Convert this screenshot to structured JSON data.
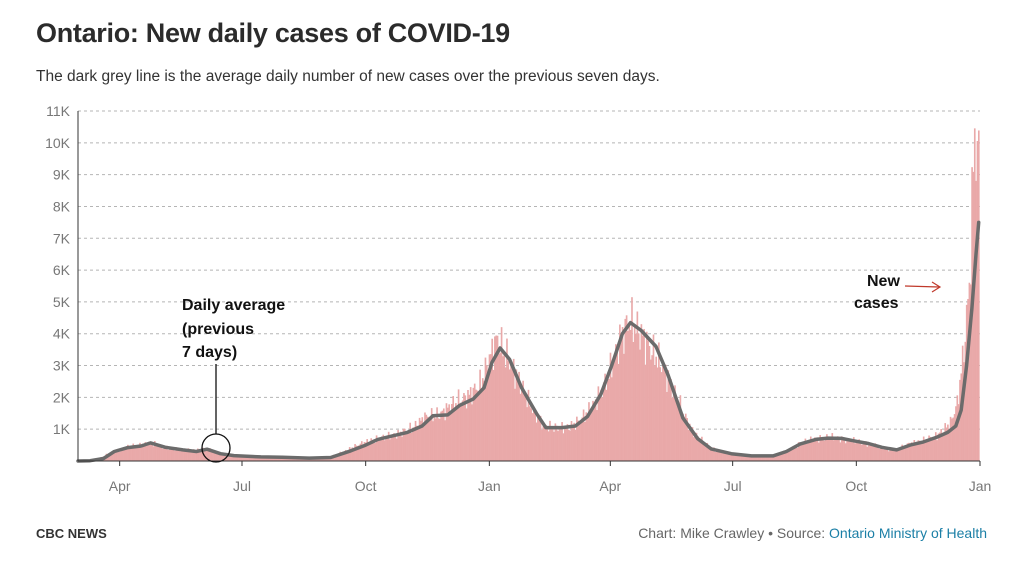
{
  "header": {
    "title": "Ontario: New daily cases of COVID-19",
    "subtitle": "The dark grey line is the average daily number of new cases over the previous seven days."
  },
  "footer": {
    "brand": "CBC NEWS",
    "credit_prefix": "Chart: Mike Crawley • Source: ",
    "source_link": "Ontario Ministry of Health"
  },
  "colors": {
    "bars": "#e9a9a9",
    "average_line": "#6b6b6b",
    "arrow": "#c0392b",
    "grid": "#b5b5b5",
    "link": "#1b7fa6"
  },
  "annotations": {
    "average": [
      "Daily average",
      "(previous",
      "7 days)"
    ],
    "new_cases": [
      "New",
      "cases"
    ]
  },
  "chart_data": {
    "type": "bar",
    "title": "Ontario: New daily cases of COVID-19",
    "subtitle": "The dark grey line is the average daily number of new cases over the previous seven days.",
    "xlabel": "",
    "ylabel": "",
    "x_start": "2020-03-01",
    "x_end": "2022-01-01",
    "ylim": [
      0,
      11000
    ],
    "y_ticks": [
      {
        "value": 1000,
        "label": "1K"
      },
      {
        "value": 2000,
        "label": "2K"
      },
      {
        "value": 3000,
        "label": "3K"
      },
      {
        "value": 4000,
        "label": "4K"
      },
      {
        "value": 5000,
        "label": "5K"
      },
      {
        "value": 6000,
        "label": "6K"
      },
      {
        "value": 7000,
        "label": "7K"
      },
      {
        "value": 8000,
        "label": "8K"
      },
      {
        "value": 9000,
        "label": "9K"
      },
      {
        "value": 10000,
        "label": "10K"
      },
      {
        "value": 11000,
        "label": "11K"
      }
    ],
    "x_ticks": [
      {
        "date": "2020-04-01",
        "label": "Apr"
      },
      {
        "date": "2020-07-01",
        "label": "Jul"
      },
      {
        "date": "2020-10-01",
        "label": "Oct"
      },
      {
        "date": "2021-01-01",
        "label": "Jan"
      },
      {
        "date": "2021-04-01",
        "label": "Apr"
      },
      {
        "date": "2021-07-01",
        "label": "Jul"
      },
      {
        "date": "2021-10-01",
        "label": "Oct"
      },
      {
        "date": "2022-01-01",
        "label": "Jan"
      }
    ],
    "grid": true,
    "legend": "none",
    "series": [
      {
        "name": "New cases",
        "kind": "bars",
        "interpolated_daily": true,
        "points": [
          [
            "2020-03-01",
            0
          ],
          [
            "2020-03-15",
            50
          ],
          [
            "2020-03-25",
            250
          ],
          [
            "2020-04-05",
            420
          ],
          [
            "2020-04-15",
            500
          ],
          [
            "2020-04-25",
            560
          ],
          [
            "2020-05-05",
            420
          ],
          [
            "2020-05-15",
            360
          ],
          [
            "2020-05-25",
            330
          ],
          [
            "2020-06-05",
            380
          ],
          [
            "2020-06-15",
            220
          ],
          [
            "2020-06-25",
            160
          ],
          [
            "2020-07-10",
            130
          ],
          [
            "2020-07-25",
            140
          ],
          [
            "2020-08-10",
            90
          ],
          [
            "2020-08-25",
            100
          ],
          [
            "2020-09-05",
            140
          ],
          [
            "2020-09-15",
            300
          ],
          [
            "2020-09-25",
            500
          ],
          [
            "2020-10-05",
            650
          ],
          [
            "2020-10-15",
            750
          ],
          [
            "2020-10-25",
            850
          ],
          [
            "2020-11-05",
            1050
          ],
          [
            "2020-11-15",
            1400
          ],
          [
            "2020-11-25",
            1450
          ],
          [
            "2020-12-05",
            1800
          ],
          [
            "2020-12-15",
            2000
          ],
          [
            "2020-12-25",
            2400
          ],
          [
            "2021-01-01",
            3200
          ],
          [
            "2021-01-06",
            3800
          ],
          [
            "2021-01-10",
            3600
          ],
          [
            "2021-01-20",
            2800
          ],
          [
            "2021-02-01",
            1700
          ],
          [
            "2021-02-10",
            1100
          ],
          [
            "2021-02-20",
            1050
          ],
          [
            "2021-03-01",
            1050
          ],
          [
            "2021-03-10",
            1300
          ],
          [
            "2021-03-20",
            1800
          ],
          [
            "2021-03-30",
            2600
          ],
          [
            "2021-04-08",
            3800
          ],
          [
            "2021-04-15",
            4400
          ],
          [
            "2021-04-22",
            4100
          ],
          [
            "2021-05-01",
            3500
          ],
          [
            "2021-05-10",
            3000
          ],
          [
            "2021-05-20",
            2000
          ],
          [
            "2021-05-31",
            1000
          ],
          [
            "2021-06-10",
            550
          ],
          [
            "2021-06-20",
            300
          ],
          [
            "2021-07-01",
            200
          ],
          [
            "2021-07-15",
            160
          ],
          [
            "2021-07-31",
            170
          ],
          [
            "2021-08-10",
            300
          ],
          [
            "2021-08-20",
            550
          ],
          [
            "2021-08-31",
            700
          ],
          [
            "2021-09-10",
            750
          ],
          [
            "2021-09-20",
            700
          ],
          [
            "2021-09-30",
            620
          ],
          [
            "2021-10-10",
            550
          ],
          [
            "2021-10-20",
            400
          ],
          [
            "2021-10-31",
            350
          ],
          [
            "2021-11-10",
            550
          ],
          [
            "2021-11-20",
            650
          ],
          [
            "2021-11-30",
            800
          ],
          [
            "2021-12-10",
            1200
          ],
          [
            "2021-12-15",
            1800
          ],
          [
            "2021-12-20",
            3500
          ],
          [
            "2021-12-24",
            5500
          ],
          [
            "2021-12-28",
            10400
          ],
          [
            "2021-12-30",
            9500
          ],
          [
            "2021-12-31",
            9300
          ]
        ]
      },
      {
        "name": "Daily average (previous 7 days)",
        "kind": "line",
        "points": [
          [
            "2020-03-01",
            0
          ],
          [
            "2020-03-10",
            10
          ],
          [
            "2020-03-20",
            80
          ],
          [
            "2020-03-28",
            300
          ],
          [
            "2020-04-07",
            420
          ],
          [
            "2020-04-17",
            470
          ],
          [
            "2020-04-24",
            570
          ],
          [
            "2020-05-05",
            430
          ],
          [
            "2020-05-18",
            350
          ],
          [
            "2020-05-28",
            300
          ],
          [
            "2020-06-05",
            370
          ],
          [
            "2020-06-15",
            230
          ],
          [
            "2020-06-25",
            170
          ],
          [
            "2020-07-15",
            130
          ],
          [
            "2020-07-31",
            120
          ],
          [
            "2020-08-20",
            90
          ],
          [
            "2020-09-05",
            110
          ],
          [
            "2020-09-20",
            320
          ],
          [
            "2020-10-01",
            500
          ],
          [
            "2020-10-10",
            680
          ],
          [
            "2020-10-20",
            780
          ],
          [
            "2020-11-01",
            900
          ],
          [
            "2020-11-12",
            1100
          ],
          [
            "2020-11-20",
            1420
          ],
          [
            "2020-12-01",
            1450
          ],
          [
            "2020-12-10",
            1750
          ],
          [
            "2020-12-20",
            1950
          ],
          [
            "2020-12-28",
            2300
          ],
          [
            "2021-01-03",
            3100
          ],
          [
            "2021-01-09",
            3550
          ],
          [
            "2021-01-16",
            3200
          ],
          [
            "2021-01-25",
            2300
          ],
          [
            "2021-02-05",
            1500
          ],
          [
            "2021-02-12",
            1050
          ],
          [
            "2021-02-24",
            1050
          ],
          [
            "2021-03-06",
            1100
          ],
          [
            "2021-03-15",
            1400
          ],
          [
            "2021-03-25",
            2100
          ],
          [
            "2021-04-02",
            3000
          ],
          [
            "2021-04-10",
            4000
          ],
          [
            "2021-04-16",
            4350
          ],
          [
            "2021-04-24",
            4100
          ],
          [
            "2021-05-05",
            3600
          ],
          [
            "2021-05-14",
            2700
          ],
          [
            "2021-05-25",
            1350
          ],
          [
            "2021-06-05",
            700
          ],
          [
            "2021-06-15",
            380
          ],
          [
            "2021-06-30",
            230
          ],
          [
            "2021-07-15",
            160
          ],
          [
            "2021-07-31",
            160
          ],
          [
            "2021-08-10",
            300
          ],
          [
            "2021-08-20",
            530
          ],
          [
            "2021-09-01",
            680
          ],
          [
            "2021-09-10",
            720
          ],
          [
            "2021-09-20",
            710
          ],
          [
            "2021-10-01",
            620
          ],
          [
            "2021-10-10",
            550
          ],
          [
            "2021-10-20",
            430
          ],
          [
            "2021-10-31",
            350
          ],
          [
            "2021-11-10",
            500
          ],
          [
            "2021-11-20",
            600
          ],
          [
            "2021-11-30",
            750
          ],
          [
            "2021-12-08",
            900
          ],
          [
            "2021-12-14",
            1100
          ],
          [
            "2021-12-18",
            1600
          ],
          [
            "2021-12-22",
            3000
          ],
          [
            "2021-12-26",
            4800
          ],
          [
            "2021-12-29",
            6500
          ],
          [
            "2021-12-31",
            7500
          ]
        ]
      }
    ]
  }
}
